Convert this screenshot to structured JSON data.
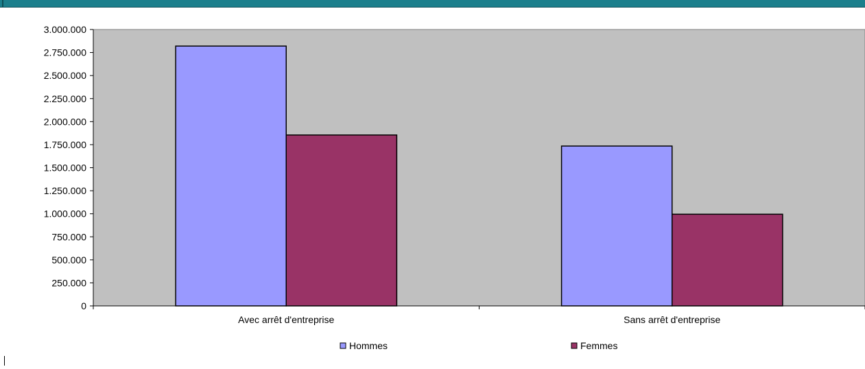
{
  "chart_data": {
    "type": "bar",
    "categories": [
      "Avec arrêt d'entreprise",
      "Sans arrêt d'entreprise"
    ],
    "series": [
      {
        "name": "Hommes",
        "values": [
          2820000,
          1735000
        ],
        "color": "#9999ff"
      },
      {
        "name": "Femmes",
        "values": [
          1855000,
          995000
        ],
        "color": "#993366"
      }
    ],
    "ylim": [
      0,
      3000000
    ],
    "yticks": [
      0,
      250000,
      500000,
      750000,
      1000000,
      1250000,
      1500000,
      1750000,
      2000000,
      2250000,
      2500000,
      2750000,
      3000000
    ],
    "ytick_labels": [
      "0",
      "250.000",
      "500.000",
      "750.000",
      "1.000.000",
      "1.250.000",
      "1.500.000",
      "1.750.000",
      "2.000.000",
      "2.250.000",
      "2.500.000",
      "2.750.000",
      "3.000.000"
    ],
    "title": "",
    "xlabel": "",
    "ylabel": "",
    "plot_background": "#c0c0c0",
    "grid": false,
    "legend_position": "bottom"
  }
}
